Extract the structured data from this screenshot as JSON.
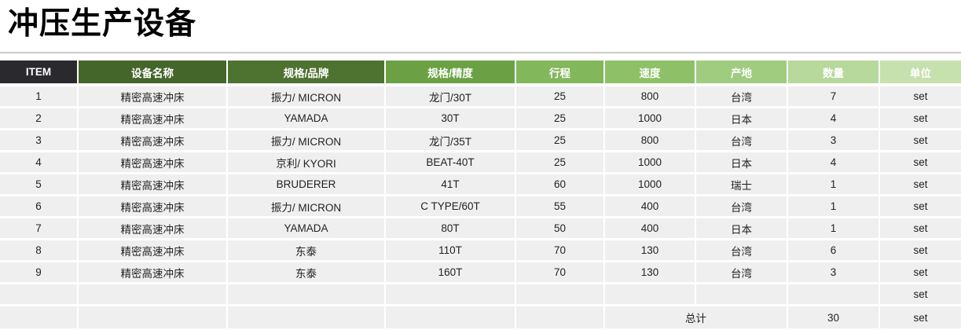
{
  "page": {
    "title": "冲压生产设备"
  },
  "table": {
    "columns": [
      {
        "key": "item",
        "label": "ITEM",
        "color": "#29292e"
      },
      {
        "key": "name",
        "label": "设备名称",
        "color": "#45662b"
      },
      {
        "key": "brand",
        "label": "规格/品牌",
        "color": "#4e7230"
      },
      {
        "key": "spec",
        "label": "规格/精度",
        "color": "#6ba144"
      },
      {
        "key": "stroke",
        "label": "行程",
        "color": "#82b75b"
      },
      {
        "key": "speed",
        "label": "速度",
        "color": "#8ec167"
      },
      {
        "key": "origin",
        "label": "产地",
        "color": "#a0cc80"
      },
      {
        "key": "qty",
        "label": "数量",
        "color": "#b7d99c"
      },
      {
        "key": "unit",
        "label": "单位",
        "color": "#c6e0ae"
      }
    ],
    "rows": [
      [
        "1",
        "精密高速冲床",
        "振力/ MICRON",
        "龙门/30T",
        "25",
        "800",
        "台湾",
        "7",
        "set"
      ],
      [
        "2",
        "精密高速冲床",
        "YAMADA",
        "30T",
        "25",
        "1000",
        "日本",
        "4",
        "set"
      ],
      [
        "3",
        "精密高速冲床",
        "振力/ MICRON",
        "龙门/35T",
        "25",
        "800",
        "台湾",
        "3",
        "set"
      ],
      [
        "4",
        "精密高速冲床",
        "京利/ KYORI",
        "BEAT-40T",
        "25",
        "1000",
        "日本",
        "4",
        "set"
      ],
      [
        "5",
        "精密高速冲床",
        "BRUDERER",
        "41T",
        "60",
        "1000",
        "瑞士",
        "1",
        "set"
      ],
      [
        "6",
        "精密高速冲床",
        "振力/ MICRON",
        "C TYPE/60T",
        "55",
        "400",
        "台湾",
        "1",
        "set"
      ],
      [
        "7",
        "精密高速冲床",
        "YAMADA",
        "80T",
        "50",
        "400",
        "日本",
        "1",
        "set"
      ],
      [
        "8",
        "精密高速冲床",
        "东泰",
        "110T",
        "70",
        "130",
        "台湾",
        "6",
        "set"
      ],
      [
        "9",
        "精密高速冲床",
        "东泰",
        "160T",
        "70",
        "130",
        "台湾",
        "3",
        "set"
      ],
      [
        "",
        "",
        "",
        "",
        "",
        "",
        "",
        "",
        "set"
      ]
    ],
    "total_row": {
      "label": "总计",
      "quantity": "30",
      "unit": "set"
    }
  }
}
